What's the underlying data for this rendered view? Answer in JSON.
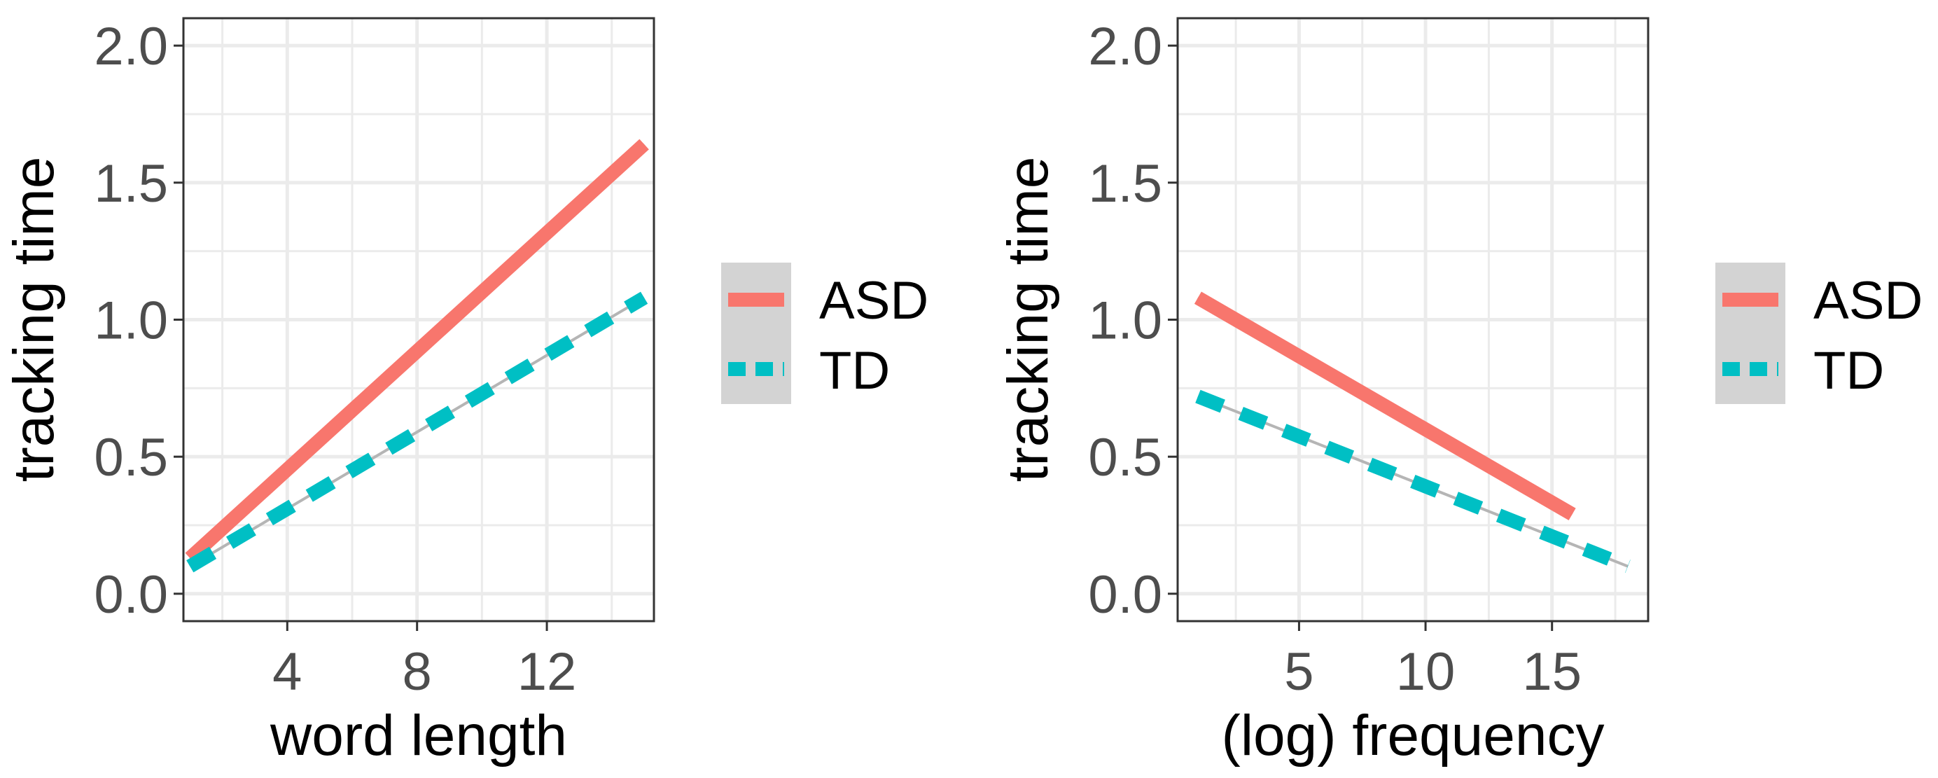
{
  "chart_data": [
    {
      "type": "line",
      "xlabel": "word length",
      "ylabel": "tracking time",
      "xlim": [
        0.8,
        15.3
      ],
      "ylim": [
        -0.1,
        2.1
      ],
      "xticks": [
        4,
        8,
        12
      ],
      "yticks": [
        0.0,
        0.5,
        1.0,
        1.5,
        2.0
      ],
      "ytick_labels": [
        "0.0",
        "0.5",
        "1.0",
        "1.5",
        "2.0"
      ],
      "grid": true,
      "legend_position": "right",
      "series": [
        {
          "name": "ASD",
          "color": "#F8766D",
          "style": "solid",
          "x": [
            1,
            15
          ],
          "y": [
            0.13,
            1.64
          ]
        },
        {
          "name": "TD",
          "color": "#00BFC4",
          "style": "dashed",
          "x": [
            1,
            15
          ],
          "y": [
            0.1,
            1.08
          ]
        }
      ]
    },
    {
      "type": "line",
      "xlabel": "(log) frequency",
      "ylabel": "tracking time",
      "xlim": [
        0.2,
        18.8
      ],
      "ylim": [
        -0.1,
        2.1
      ],
      "xticks": [
        5,
        10,
        15
      ],
      "yticks": [
        0.0,
        0.5,
        1.0,
        1.5,
        2.0
      ],
      "ytick_labels": [
        "0.0",
        "0.5",
        "1.0",
        "1.5",
        "2.0"
      ],
      "grid": true,
      "legend_position": "right",
      "series": [
        {
          "name": "ASD",
          "color": "#F8766D",
          "style": "solid",
          "x": [
            1,
            15.8
          ],
          "y": [
            1.08,
            0.29
          ]
        },
        {
          "name": "TD",
          "color": "#00BFC4",
          "style": "dashed",
          "x": [
            1,
            18
          ],
          "y": [
            0.72,
            0.1
          ]
        }
      ]
    }
  ]
}
